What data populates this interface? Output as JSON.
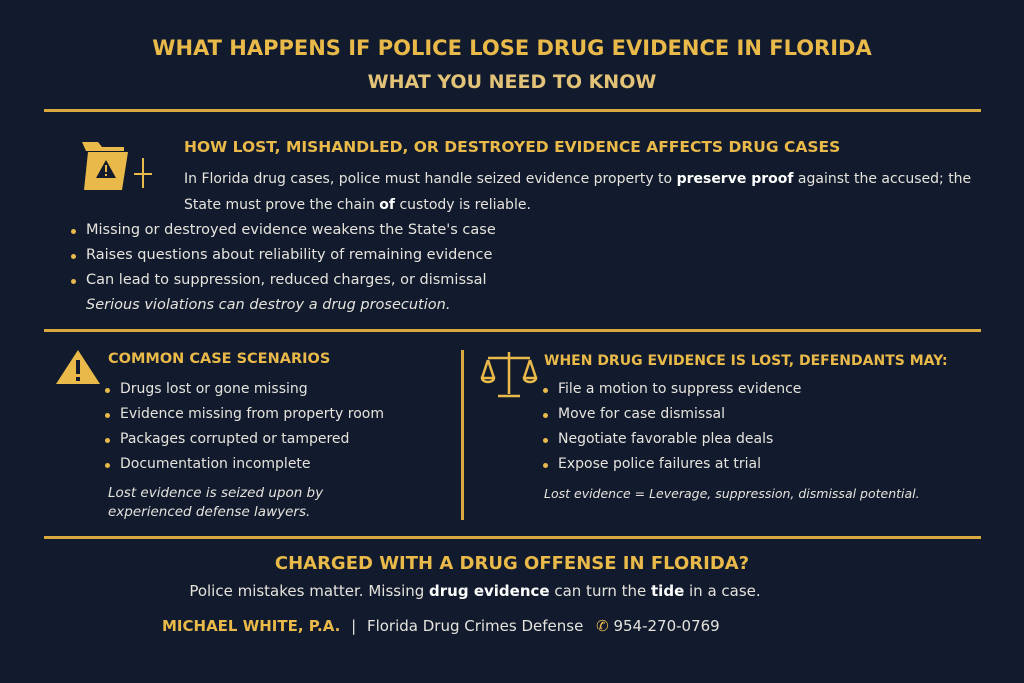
{
  "header": {
    "title": "WHAT HAPPENS IF POLICE LOSE DRUG EVIDENCE IN FLORIDA",
    "subtitle": "WHAT YOU NEED TO KNOW"
  },
  "section1": {
    "heading": "HOW LOST, MISHANDLED, OR DESTROYED EVIDENCE AFFECTS DRUG CASES",
    "intro_a": "In Florida drug cases, police must handle seized evidence property to ",
    "intro_b": "preserve proof",
    "intro_c": " against the accused; the State must prove the chain ",
    "intro_d": "of",
    "intro_e": " custody is reliable.",
    "bullets": [
      "Missing or destroyed evidence weakens the State's case",
      "Raises questions about reliability of remaining evidence",
      "Can lead to suppression, reduced charges, or dismissal"
    ],
    "note": "Serious violations can destroy a drug prosecution.",
    "icon": "folder-warning-icon"
  },
  "section2": {
    "heading": "COMMON CASE SCENARIOS",
    "bullets": [
      "Drugs lost or gone missing",
      "Evidence missing from property room",
      "Packages corrupted or tampered",
      "Documentation incomplete"
    ],
    "note": "Lost evidence is seized upon by experienced defense lawyers.",
    "icon": "warning-icon"
  },
  "section3": {
    "heading": "WHEN DRUG EVIDENCE IS LOST, DEFENDANTS MAY:",
    "bullets": [
      "File a motion to suppress evidence",
      "Move for case dismissal",
      "Negotiate favorable plea deals",
      "Expose police failures at trial"
    ],
    "note": "Lost evidence = Leverage, suppression, dismissal potential.",
    "icon": "scales-icon"
  },
  "footer": {
    "heading": "CHARGED WITH A DRUG OFFENSE IN FLORIDA?",
    "line_a": "Police mistakes matter. Missing ",
    "line_b": "drug evidence",
    "line_c": " can turn the ",
    "line_d": "tide",
    "line_e": " in a case.",
    "firm": "MICHAEL WHITE, P.A.",
    "sep": "|",
    "practice": "Florida Drug Crimes Defense",
    "phone": "954-270-0769"
  },
  "colors": {
    "background": "#121b2d",
    "accent": "#e9b949"
  }
}
